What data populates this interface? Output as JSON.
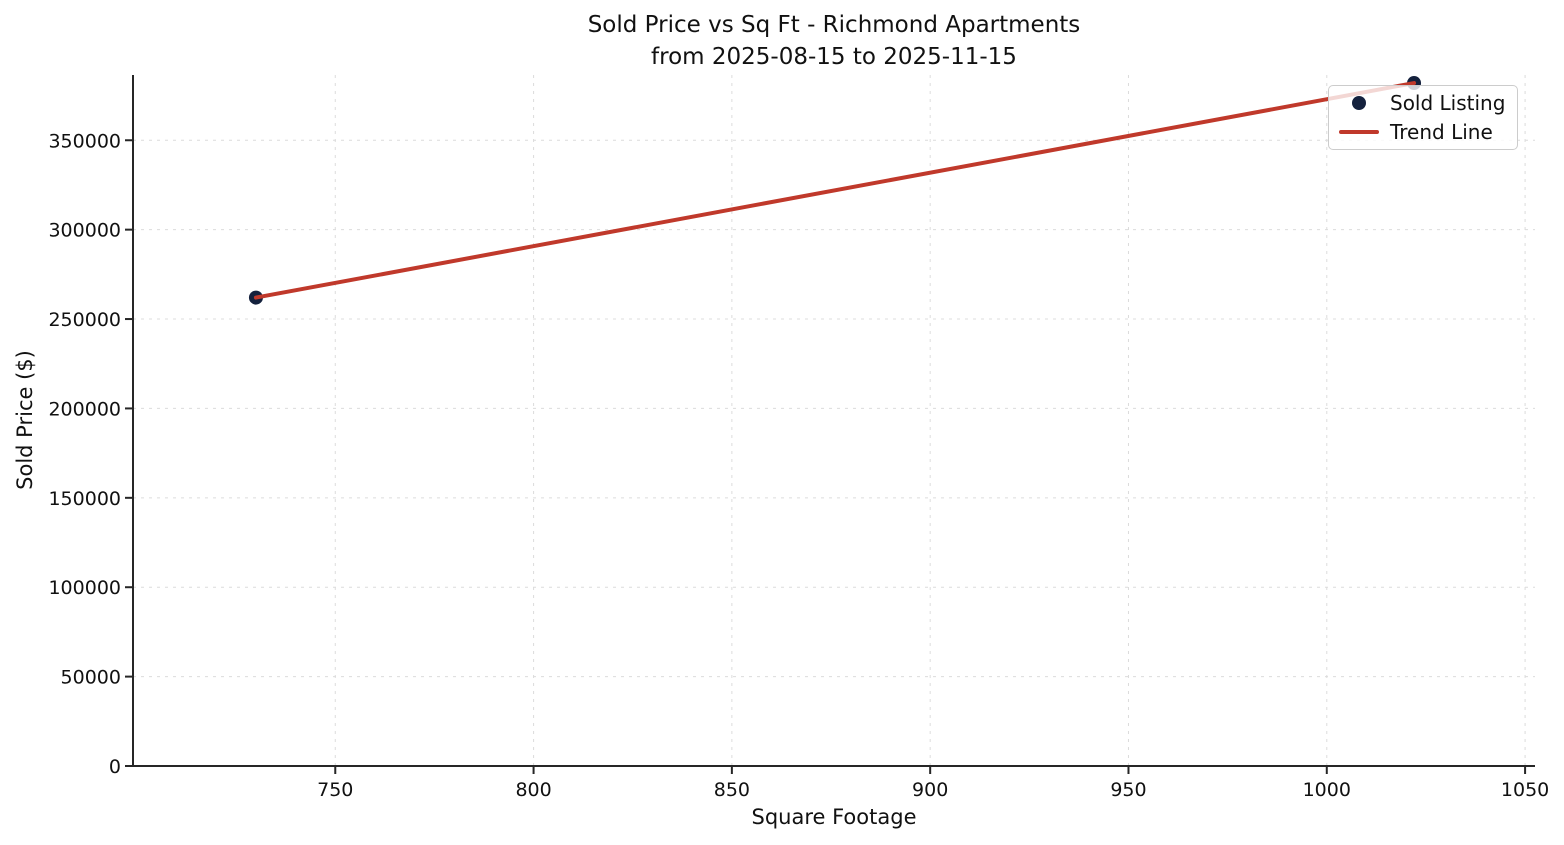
{
  "chart_data": {
    "type": "scatter",
    "title": "Sold Price vs Sq Ft - Richmond Apartments",
    "subtitle": "from 2025-08-15 to 2025-11-15",
    "xlabel": "Square Footage",
    "ylabel": "Sold Price ($)",
    "xlim": [
      699,
      1052.5
    ],
    "ylim": [
      0,
      386500
    ],
    "x_ticks": [
      750,
      800,
      850,
      900,
      950,
      1000,
      1050
    ],
    "y_ticks": [
      0,
      50000,
      100000,
      150000,
      200000,
      250000,
      300000,
      350000
    ],
    "grid": true,
    "grid_style": "dashed",
    "legend_position": "upper right",
    "series": [
      {
        "name": "Sold Listing",
        "kind": "scatter",
        "color": "#14213d",
        "marker": "circle",
        "points": [
          [
            730,
            262000
          ],
          [
            1022,
            382000
          ]
        ]
      },
      {
        "name": "Trend Line",
        "kind": "line",
        "color": "#c0392b",
        "points": [
          [
            730,
            262000
          ],
          [
            1022,
            382000
          ]
        ]
      }
    ]
  },
  "style": {
    "grid_color": "#dcdcdc",
    "spine_color": "#262626",
    "text_color": "#111111",
    "background": "#ffffff"
  }
}
